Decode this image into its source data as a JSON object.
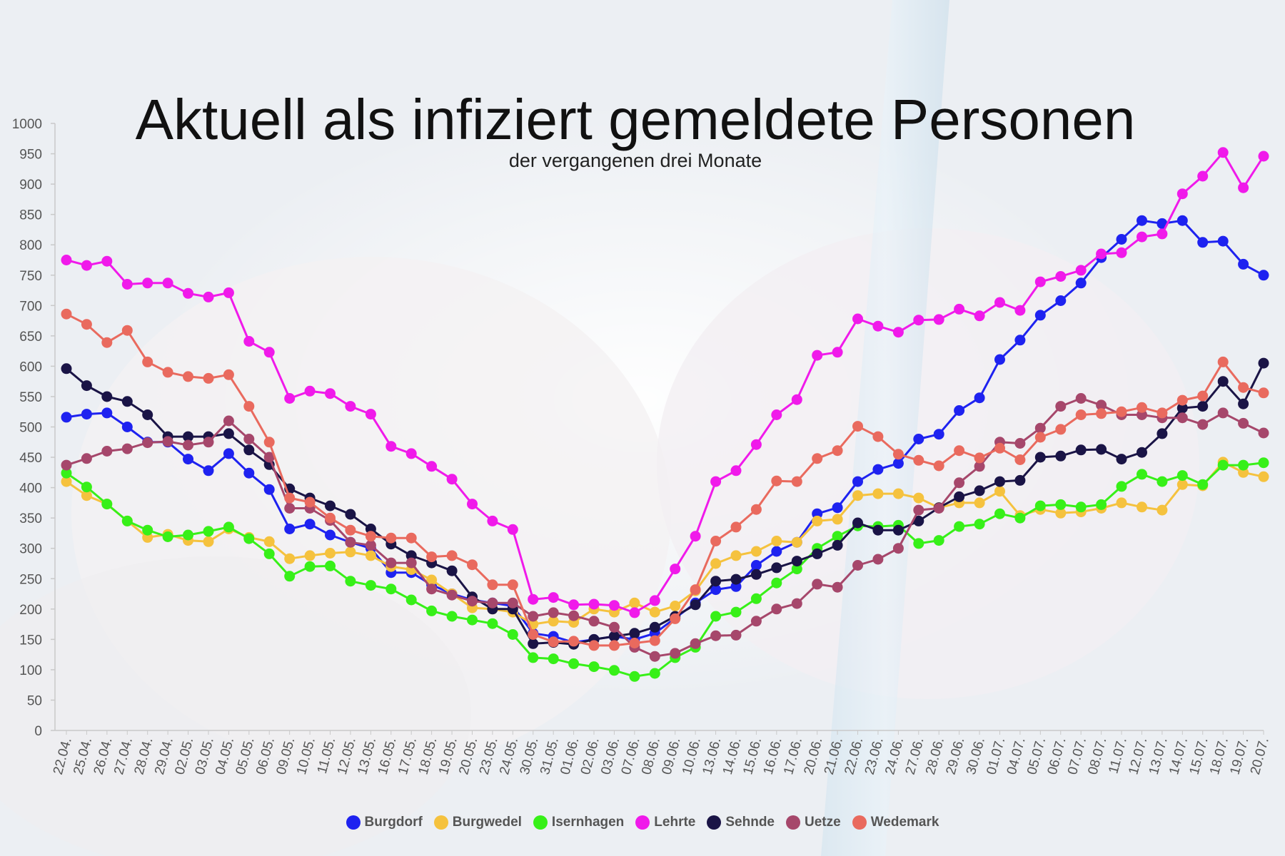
{
  "chart_data": {
    "type": "line",
    "title": "Aktuell als infiziert gemeldete Personen",
    "subtitle": "der vergangenen drei Monate",
    "ylim": [
      0,
      1000
    ],
    "yticks": [
      0,
      50,
      100,
      150,
      200,
      250,
      300,
      350,
      400,
      450,
      500,
      550,
      600,
      650,
      700,
      750,
      800,
      850,
      900,
      950,
      1000
    ],
    "grid": false,
    "legend": "bottom-center",
    "categories": [
      "22.04.",
      "25.04.",
      "26.04.",
      "27.04.",
      "28.04.",
      "29.04.",
      "02.05.",
      "03.05.",
      "04.05.",
      "05.05.",
      "06.05.",
      "09.05.",
      "10.05.",
      "11.05.",
      "12.05.",
      "13.05.",
      "16.05.",
      "17.05.",
      "18.05.",
      "19.05.",
      "20.05.",
      "23.05.",
      "24.05.",
      "30.05.",
      "31.05.",
      "01.06.",
      "02.06.",
      "03.06.",
      "07.06.",
      "08.06.",
      "09.06.",
      "10.06.",
      "13.06.",
      "14.06.",
      "15.06.",
      "16.06.",
      "17.06.",
      "20.06.",
      "21.06.",
      "22.06.",
      "23.06.",
      "24.06.",
      "27.06.",
      "28.06.",
      "29.06.",
      "30.06.",
      "01.07.",
      "04.07.",
      "05.07.",
      "06.07.",
      "07.07.",
      "08.07.",
      "11.07.",
      "12.07.",
      "13.07.",
      "14.07.",
      "15.07.",
      "18.07.",
      "19.07.",
      "20.07."
    ],
    "series": [
      {
        "name": "Burgdorf",
        "color": "#1e22f0",
        "values": [
          516,
          521,
          523,
          500,
          475,
          475,
          447,
          428,
          456,
          424,
          397,
          332,
          340,
          322,
          310,
          300,
          260,
          260,
          240,
          225,
          215,
          210,
          205,
          160,
          155,
          145,
          150,
          155,
          150,
          160,
          185,
          210,
          232,
          237,
          272,
          295,
          310,
          357,
          367,
          410,
          430,
          440,
          480,
          488,
          527,
          548,
          611,
          643,
          684,
          708,
          737,
          779,
          809,
          840,
          835,
          840,
          804,
          806,
          768,
          750
        ]
      },
      {
        "name": "Burgwedel",
        "color": "#f5c23e",
        "values": [
          410,
          387,
          373,
          345,
          318,
          323,
          313,
          311,
          332,
          318,
          311,
          283,
          288,
          292,
          294,
          288,
          270,
          265,
          248,
          225,
          202,
          200,
          195,
          175,
          180,
          178,
          200,
          195,
          210,
          195,
          205,
          230,
          275,
          288,
          295,
          312,
          310,
          345,
          348,
          387,
          390,
          390,
          383,
          367,
          375,
          375,
          394,
          354,
          364,
          358,
          360,
          366,
          375,
          368,
          363,
          405,
          403,
          442,
          425,
          418
        ]
      },
      {
        "name": "Isernhagen",
        "color": "#37f018",
        "values": [
          424,
          401,
          373,
          345,
          330,
          319,
          322,
          328,
          335,
          316,
          291,
          254,
          270,
          271,
          246,
          239,
          233,
          215,
          197,
          188,
          182,
          176,
          158,
          120,
          118,
          110,
          105,
          99,
          89,
          94,
          120,
          137,
          188,
          195,
          217,
          243,
          266,
          300,
          320,
          337,
          336,
          338,
          308,
          313,
          336,
          340,
          357,
          350,
          370,
          372,
          368,
          372,
          402,
          422,
          410,
          420,
          405,
          437,
          437,
          441
        ]
      },
      {
        "name": "Lehrte",
        "color": "#f01aea",
        "values": [
          775,
          766,
          773,
          735,
          737,
          737,
          720,
          714,
          721,
          641,
          623,
          547,
          559,
          555,
          534,
          521,
          468,
          456,
          435,
          414,
          373,
          345,
          331,
          216,
          219,
          207,
          208,
          206,
          194,
          214,
          266,
          320,
          410,
          428,
          471,
          520,
          545,
          618,
          623,
          678,
          666,
          656,
          676,
          677,
          694,
          683,
          705,
          692,
          739,
          748,
          758,
          785,
          787,
          813,
          818,
          884,
          913,
          952,
          894,
          946
        ]
      },
      {
        "name": "Sehnde",
        "color": "#1a1446",
        "values": [
          596,
          568,
          550,
          542,
          520,
          484,
          484,
          484,
          489,
          462,
          438,
          398,
          383,
          370,
          356,
          332,
          307,
          288,
          276,
          263,
          220,
          200,
          200,
          143,
          145,
          142,
          150,
          155,
          160,
          170,
          188,
          207,
          246,
          249,
          257,
          268,
          279,
          291,
          305,
          342,
          330,
          330,
          345,
          367,
          385,
          395,
          410,
          412,
          450,
          452,
          462,
          463,
          447,
          458,
          489,
          531,
          534,
          575,
          538,
          605
        ]
      },
      {
        "name": "Uetze",
        "color": "#a6476b",
        "values": [
          437,
          448,
          460,
          464,
          474,
          476,
          470,
          475,
          510,
          480,
          450,
          366,
          366,
          346,
          310,
          305,
          276,
          276,
          233,
          223,
          213,
          210,
          210,
          188,
          194,
          189,
          180,
          170,
          137,
          122,
          127,
          143,
          156,
          157,
          180,
          200,
          209,
          241,
          236,
          272,
          282,
          300,
          363,
          366,
          408,
          435,
          475,
          473,
          498,
          534,
          547,
          536,
          520,
          520,
          515,
          515,
          504,
          523,
          506,
          490
        ]
      },
      {
        "name": "Wedemark",
        "color": "#e96a5e",
        "values": [
          686,
          669,
          639,
          659,
          607,
          590,
          583,
          580,
          586,
          534,
          475,
          383,
          376,
          350,
          330,
          320,
          317,
          317,
          286,
          288,
          273,
          240,
          240,
          158,
          146,
          147,
          140,
          140,
          144,
          148,
          184,
          232,
          312,
          335,
          364,
          411,
          410,
          448,
          461,
          501,
          484,
          455,
          445,
          436,
          461,
          449,
          465,
          446,
          483,
          496,
          520,
          522,
          525,
          532,
          523,
          544,
          551,
          607,
          565,
          556
        ]
      }
    ]
  }
}
